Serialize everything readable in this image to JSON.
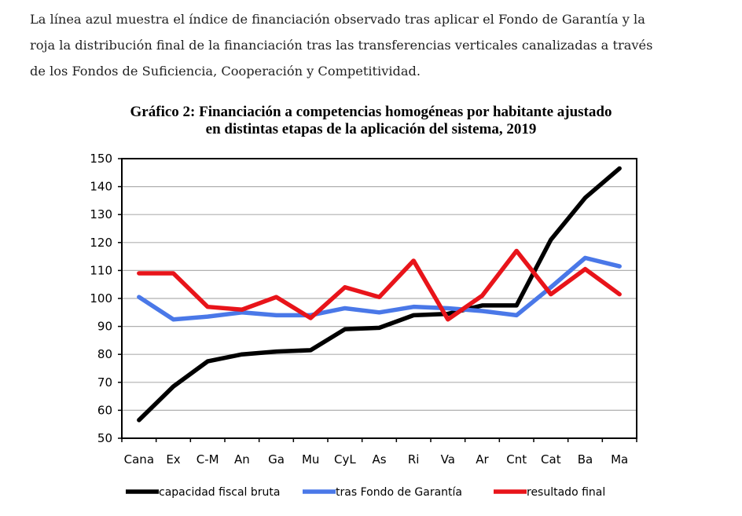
{
  "paragraph": {
    "lines": [
      "La línea azul muestra el índice de financiación observado tras aplicar el Fondo de Garantía y la",
      "roja la distribución final de la financiación tras las transferencias verticales canalizadas a través",
      "de los Fondos de Suficiencia, Cooperación y Competitividad."
    ]
  },
  "chart_data": {
    "type": "line",
    "title_lines": [
      "Gráfico 2: Financiación a competencias homogéneas por habitante ajustado",
      "en distintas etapas de la aplicación del sistema, 2019"
    ],
    "categories": [
      "Cana",
      "Ex",
      "C-M",
      "An",
      "Ga",
      "Mu",
      "CyL",
      "As",
      "Ri",
      "Va",
      "Ar",
      "Cnt",
      "Cat",
      "Ba",
      "Ma"
    ],
    "ylim": [
      50,
      150
    ],
    "yticks": [
      50,
      60,
      70,
      80,
      90,
      100,
      110,
      120,
      130,
      140,
      150
    ],
    "grid": true,
    "legend_position": "bottom",
    "series": [
      {
        "name": "capacidad fiscal bruta",
        "color": "#000000",
        "values": [
          56.5,
          68.5,
          77.5,
          80,
          81,
          81.5,
          89,
          89.5,
          94,
          94.5,
          97.5,
          97.5,
          121,
          136,
          146.5
        ]
      },
      {
        "name": "tras Fondo de Garantía",
        "color": "#4a78e8",
        "values": [
          100.5,
          92.5,
          93.5,
          95,
          94,
          94,
          96.5,
          95,
          97,
          96.5,
          95.5,
          94,
          104,
          114.5,
          111.5
        ]
      },
      {
        "name": "resultado final",
        "color": "#e8141a",
        "values": [
          109,
          109,
          97,
          96,
          100.5,
          93,
          104,
          100.5,
          113.5,
          92.5,
          101,
          117,
          101.5,
          110.5,
          101.5
        ]
      }
    ]
  }
}
